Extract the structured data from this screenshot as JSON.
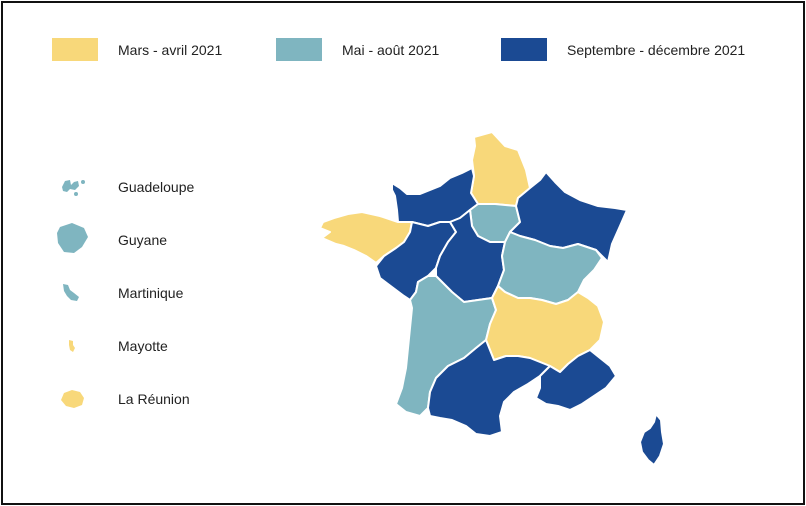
{
  "colors": {
    "period1": "#F8D87A",
    "period2": "#7FB5C0",
    "period3": "#1B4A93"
  },
  "legend": [
    {
      "label": "Mars - avril 2021",
      "color_key": "period1"
    },
    {
      "label": "Mai - août 2021",
      "color_key": "period2"
    },
    {
      "label": "Septembre - décembre 2021",
      "color_key": "period3"
    }
  ],
  "overseas": [
    {
      "label": "Guadeloupe",
      "period": "period2"
    },
    {
      "label": "Guyane",
      "period": "period2"
    },
    {
      "label": "Martinique",
      "period": "period2"
    },
    {
      "label": "Mayotte",
      "period": "period1"
    },
    {
      "label": "La Réunion",
      "period": "period1"
    }
  ],
  "regions": [
    {
      "name": "Hauts-de-France",
      "period": "period1"
    },
    {
      "name": "Normandie",
      "period": "period3"
    },
    {
      "name": "Île-de-France",
      "period": "period2"
    },
    {
      "name": "Grand Est",
      "period": "period3"
    },
    {
      "name": "Bretagne",
      "period": "period1"
    },
    {
      "name": "Pays de la Loire",
      "period": "period3"
    },
    {
      "name": "Centre-Val de Loire",
      "period": "period3"
    },
    {
      "name": "Bourgogne-Franche-Comté",
      "period": "period2"
    },
    {
      "name": "Nouvelle-Aquitaine",
      "period": "period2"
    },
    {
      "name": "Auvergne-Rhône-Alpes",
      "period": "period1"
    },
    {
      "name": "Occitanie",
      "period": "period3"
    },
    {
      "name": "Provence-Alpes-Côte d'Azur",
      "period": "period3"
    },
    {
      "name": "Corse",
      "period": "period3"
    }
  ]
}
